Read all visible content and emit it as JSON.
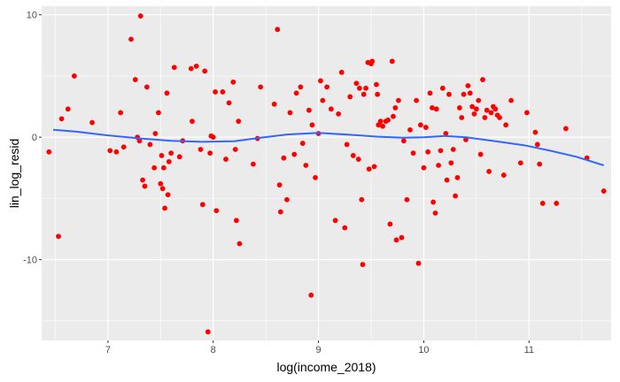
{
  "chart_data": {
    "type": "scatter",
    "title": "",
    "xlabel": "log(income_2018)",
    "ylabel": "lin_log_resid",
    "xlim": [
      6.37,
      11.78
    ],
    "ylim": [
      -16.6,
      10.7
    ],
    "x_ticks": [
      7,
      8,
      9,
      10,
      11
    ],
    "y_ticks": [
      -10,
      0,
      10
    ],
    "x_tick_labels": [
      "7",
      "8",
      "9",
      "10",
      "11"
    ],
    "y_tick_labels": [
      "-10",
      "0",
      "10"
    ],
    "grid": true,
    "panel_background": "#ebebeb",
    "grid_color": "#ffffff",
    "point_color": "#ff0000",
    "smooth_color": "#3366ff",
    "points": [
      [
        6.44,
        -1.2
      ],
      [
        6.53,
        -8.1
      ],
      [
        6.56,
        1.5
      ],
      [
        6.62,
        2.3
      ],
      [
        6.68,
        5.0
      ],
      [
        6.85,
        1.2
      ],
      [
        7.02,
        -1.1
      ],
      [
        7.08,
        -1.2
      ],
      [
        7.12,
        2.0
      ],
      [
        7.15,
        -0.8
      ],
      [
        7.22,
        8.0
      ],
      [
        7.26,
        4.7
      ],
      [
        7.28,
        0.0
      ],
      [
        7.3,
        -0.3
      ],
      [
        7.31,
        9.9
      ],
      [
        7.33,
        -3.5
      ],
      [
        7.35,
        -4.0
      ],
      [
        7.37,
        4.1
      ],
      [
        7.4,
        -0.6
      ],
      [
        7.44,
        -2.5
      ],
      [
        7.45,
        0.3
      ],
      [
        7.48,
        2.0
      ],
      [
        7.5,
        -3.8
      ],
      [
        7.51,
        -1.5
      ],
      [
        7.52,
        -4.2
      ],
      [
        7.53,
        -2.5
      ],
      [
        7.54,
        -5.8
      ],
      [
        7.56,
        3.6
      ],
      [
        7.57,
        -4.7
      ],
      [
        7.58,
        -2.0
      ],
      [
        7.6,
        -1.3
      ],
      [
        7.63,
        5.7
      ],
      [
        7.68,
        -1.6
      ],
      [
        7.71,
        -0.3
      ],
      [
        7.79,
        5.6
      ],
      [
        7.8,
        1.3
      ],
      [
        7.84,
        5.8
      ],
      [
        7.88,
        -1.0
      ],
      [
        7.9,
        -5.5
      ],
      [
        7.92,
        5.4
      ],
      [
        7.95,
        -15.9
      ],
      [
        7.97,
        -1.3
      ],
      [
        7.98,
        0.1
      ],
      [
        8.0,
        0.0
      ],
      [
        8.02,
        3.7
      ],
      [
        8.03,
        -6.0
      ],
      [
        8.09,
        3.7
      ],
      [
        8.12,
        -1.8
      ],
      [
        8.15,
        2.8
      ],
      [
        8.19,
        4.5
      ],
      [
        8.21,
        -1.0
      ],
      [
        8.22,
        -6.8
      ],
      [
        8.25,
        -8.7
      ],
      [
        8.24,
        1.3
      ],
      [
        8.38,
        -2.2
      ],
      [
        8.42,
        -0.1
      ],
      [
        8.45,
        4.1
      ],
      [
        8.58,
        2.7
      ],
      [
        8.61,
        8.8
      ],
      [
        8.63,
        -3.9
      ],
      [
        8.64,
        -6.1
      ],
      [
        8.67,
        -1.7
      ],
      [
        8.7,
        -5.1
      ],
      [
        8.73,
        2.0
      ],
      [
        8.77,
        -1.4
      ],
      [
        8.79,
        3.6
      ],
      [
        8.83,
        4.1
      ],
      [
        8.85,
        -0.5
      ],
      [
        8.88,
        -2.3
      ],
      [
        8.91,
        2.2
      ],
      [
        8.93,
        -12.9
      ],
      [
        8.94,
        1.0
      ],
      [
        8.97,
        -3.3
      ],
      [
        9.0,
        0.3
      ],
      [
        9.02,
        4.6
      ],
      [
        9.04,
        3.0
      ],
      [
        9.08,
        4.1
      ],
      [
        9.12,
        2.3
      ],
      [
        9.16,
        -6.8
      ],
      [
        9.19,
        1.9
      ],
      [
        9.22,
        5.3
      ],
      [
        9.25,
        -7.4
      ],
      [
        9.27,
        -0.6
      ],
      [
        9.3,
        3.3
      ],
      [
        9.33,
        -1.5
      ],
      [
        9.36,
        4.4
      ],
      [
        9.38,
        -1.8
      ],
      [
        9.39,
        4.0
      ],
      [
        9.41,
        -5.1
      ],
      [
        9.42,
        -10.4
      ],
      [
        9.43,
        3.5
      ],
      [
        9.45,
        4.0
      ],
      [
        9.47,
        6.1
      ],
      [
        9.48,
        -2.6
      ],
      [
        9.5,
        6.0
      ],
      [
        9.51,
        6.2
      ],
      [
        9.53,
        -2.4
      ],
      [
        9.55,
        4.3
      ],
      [
        9.56,
        3.5
      ],
      [
        9.57,
        1.0
      ],
      [
        9.59,
        1.3
      ],
      [
        9.61,
        0.9
      ],
      [
        9.64,
        1.3
      ],
      [
        9.66,
        1.4
      ],
      [
        9.68,
        -7.1
      ],
      [
        9.7,
        6.2
      ],
      [
        9.71,
        1.7
      ],
      [
        9.73,
        2.4
      ],
      [
        9.74,
        -8.4
      ],
      [
        9.76,
        3.0
      ],
      [
        9.79,
        -8.2
      ],
      [
        9.81,
        -0.3
      ],
      [
        9.84,
        -5.1
      ],
      [
        9.87,
        0.6
      ],
      [
        9.9,
        -1.3
      ],
      [
        9.93,
        3.0
      ],
      [
        9.95,
        -10.3
      ],
      [
        9.97,
        1.0
      ],
      [
        10.0,
        -2.5
      ],
      [
        10.02,
        0.8
      ],
      [
        10.04,
        -1.2
      ],
      [
        10.06,
        3.6
      ],
      [
        10.08,
        2.4
      ],
      [
        10.09,
        -5.3
      ],
      [
        10.11,
        -6.2
      ],
      [
        10.12,
        2.3
      ],
      [
        10.14,
        -2.3
      ],
      [
        10.16,
        -1.1
      ],
      [
        10.18,
        4.0
      ],
      [
        10.21,
        0.3
      ],
      [
        10.22,
        -3.5
      ],
      [
        10.24,
        3.5
      ],
      [
        10.26,
        -2.1
      ],
      [
        10.28,
        -1.0
      ],
      [
        10.3,
        -4.8
      ],
      [
        10.32,
        -3.3
      ],
      [
        10.34,
        2.4
      ],
      [
        10.36,
        1.6
      ],
      [
        10.38,
        3.5
      ],
      [
        10.4,
        -0.2
      ],
      [
        10.42,
        4.2
      ],
      [
        10.44,
        3.6
      ],
      [
        10.46,
        2.5
      ],
      [
        10.48,
        1.9
      ],
      [
        10.5,
        2.3
      ],
      [
        10.52,
        3.0
      ],
      [
        10.54,
        -1.4
      ],
      [
        10.56,
        4.7
      ],
      [
        10.58,
        1.6
      ],
      [
        10.6,
        2.2
      ],
      [
        10.62,
        -2.8
      ],
      [
        10.64,
        2.0
      ],
      [
        10.66,
        2.5
      ],
      [
        10.68,
        2.3
      ],
      [
        10.7,
        1.8
      ],
      [
        10.72,
        1.6
      ],
      [
        10.76,
        -3.1
      ],
      [
        10.78,
        1.0
      ],
      [
        10.83,
        3.0
      ],
      [
        10.92,
        -2.1
      ],
      [
        10.98,
        2.0
      ],
      [
        11.06,
        0.4
      ],
      [
        11.08,
        -0.6
      ],
      [
        11.1,
        -2.2
      ],
      [
        11.13,
        -5.4
      ],
      [
        11.26,
        -5.4
      ],
      [
        11.35,
        0.7
      ],
      [
        11.55,
        -1.7
      ],
      [
        11.71,
        -4.4
      ]
    ],
    "smooth": [
      [
        6.48,
        0.6
      ],
      [
        6.7,
        0.45
      ],
      [
        7.0,
        0.15
      ],
      [
        7.3,
        -0.1
      ],
      [
        7.6,
        -0.3
      ],
      [
        7.9,
        -0.38
      ],
      [
        8.2,
        -0.33
      ],
      [
        8.45,
        -0.05
      ],
      [
        8.7,
        0.22
      ],
      [
        9.0,
        0.35
      ],
      [
        9.3,
        0.2
      ],
      [
        9.55,
        0.05
      ],
      [
        9.8,
        -0.05
      ],
      [
        10.0,
        0.0
      ],
      [
        10.2,
        0.1
      ],
      [
        10.4,
        0.0
      ],
      [
        10.7,
        -0.35
      ],
      [
        10.95,
        -0.65
      ],
      [
        11.2,
        -1.1
      ],
      [
        11.45,
        -1.6
      ],
      [
        11.71,
        -2.3
      ]
    ]
  }
}
